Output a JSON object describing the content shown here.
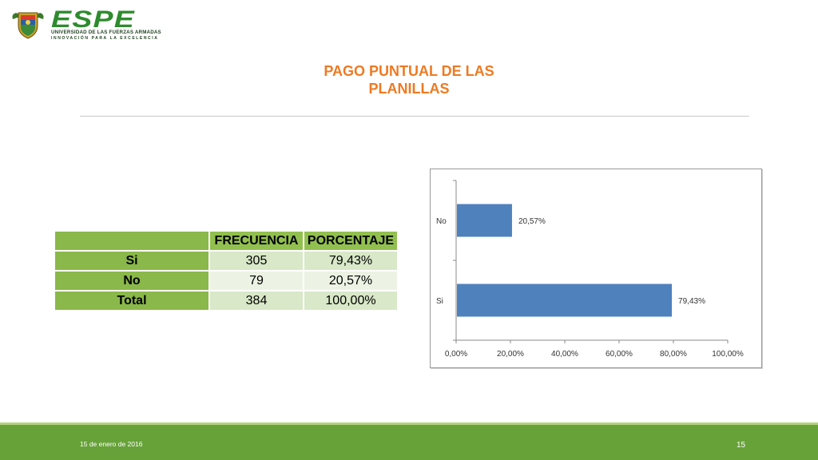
{
  "logo": {
    "name": "ESPE",
    "university": "UNIVERSIDAD DE LAS FUERZAS ARMADAS",
    "slogan": "INNOVACIÓN PARA LA EXCELENCIA"
  },
  "title_line1": "PAGO PUNTUAL DE LAS",
  "title_line2": "PLANILLAS",
  "table": {
    "headers": [
      "",
      "FRECUENCIA",
      "PORCENTAJE"
    ],
    "rows": [
      {
        "label": "Si",
        "frecuencia": "305",
        "porcentaje": "79,43%"
      },
      {
        "label": "No",
        "frecuencia": "79",
        "porcentaje": "20,57%"
      },
      {
        "label": "Total",
        "frecuencia": "384",
        "porcentaje": "100,00%"
      }
    ]
  },
  "chart_data": {
    "type": "bar",
    "orientation": "horizontal",
    "categories": [
      "No",
      "Si"
    ],
    "values": [
      20.57,
      79.43
    ],
    "data_labels": [
      "20,57%",
      "79,43%"
    ],
    "x_ticks": [
      "0,00%",
      "20,00%",
      "40,00%",
      "60,00%",
      "80,00%",
      "100,00%"
    ],
    "xlim": [
      0,
      100
    ],
    "bar_color": "#4f81bd",
    "grid": false,
    "legend": "none",
    "title": "",
    "xlabel": "",
    "ylabel": ""
  },
  "footer": {
    "date": "15 de enero de 2016",
    "page": "15"
  },
  "colors": {
    "title": "#ee7a22",
    "footer": "#67a239",
    "table_header": "#92c050",
    "brand_green": "#2e8b2e"
  }
}
